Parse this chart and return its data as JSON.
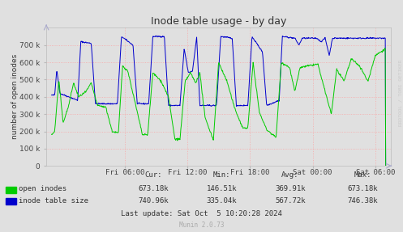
{
  "title": "Inode table usage - by day",
  "ylabel": "number of open inodes",
  "background_color": "#e0e0e0",
  "title_color": "#333333",
  "ylim": [
    0,
    800000
  ],
  "yticks": [
    0,
    100000,
    200000,
    300000,
    400000,
    500000,
    600000,
    700000
  ],
  "ytick_labels": [
    "0",
    "100 k",
    "200 k",
    "300 k",
    "400 k",
    "500 k",
    "600 k",
    "700 k"
  ],
  "xtick_positions": [
    7,
    13,
    19,
    25,
    31
  ],
  "xtick_labels": [
    "Fri 06:00",
    "Fri 12:00",
    "Fri 18:00",
    "Sat 00:00",
    "Sat 06:00"
  ],
  "legend_items": [
    "open inodes",
    "inode table size"
  ],
  "legend_colors": [
    "#00cc00",
    "#0000cc"
  ],
  "open_inodes_cur": "673.18k",
  "open_inodes_min": "146.51k",
  "open_inodes_avg": "369.91k",
  "open_inodes_max": "673.18k",
  "inode_size_cur": "740.96k",
  "inode_size_min": "335.04k",
  "inode_size_avg": "567.72k",
  "inode_size_max": "746.38k",
  "last_update": "Last update: Sat Oct  5 10:20:28 2024",
  "munin_text": "Munin 2.0.73",
  "watermark": "RRDTOOL / TOBI OETIKER",
  "line_color_green": "#00cc00",
  "line_color_blue": "#0000cc",
  "grid_color": "#ff9999",
  "xlim": [
    -0.5,
    32.5
  ]
}
